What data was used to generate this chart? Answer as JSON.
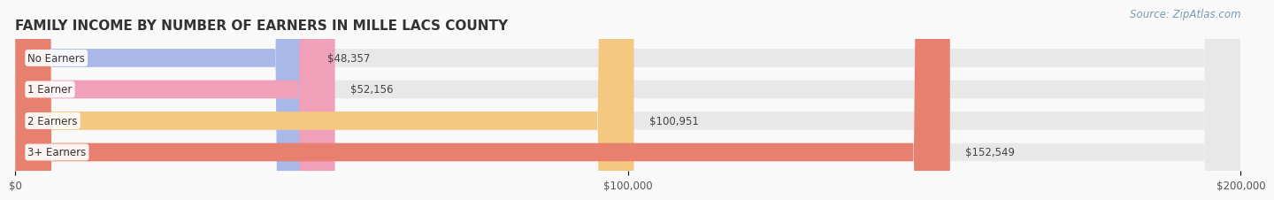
{
  "title": "FAMILY INCOME BY NUMBER OF EARNERS IN MILLE LACS COUNTY",
  "source": "Source: ZipAtlas.com",
  "categories": [
    "No Earners",
    "1 Earner",
    "2 Earners",
    "3+ Earners"
  ],
  "values": [
    48357,
    52156,
    100951,
    152549
  ],
  "labels": [
    "$48,357",
    "$52,156",
    "$100,951",
    "$152,549"
  ],
  "bar_colors": [
    "#a8b8e8",
    "#f0a0b8",
    "#f5c882",
    "#e88070"
  ],
  "bar_bg_color": "#e8e8e8",
  "background_color": "#f9f9f9",
  "xlim": [
    0,
    200000
  ],
  "xticks": [
    0,
    100000,
    200000
  ],
  "xtick_labels": [
    "$0",
    "$100,000",
    "$200,000"
  ],
  "title_fontsize": 11,
  "label_fontsize": 8.5,
  "source_fontsize": 8.5,
  "tick_fontsize": 8.5
}
